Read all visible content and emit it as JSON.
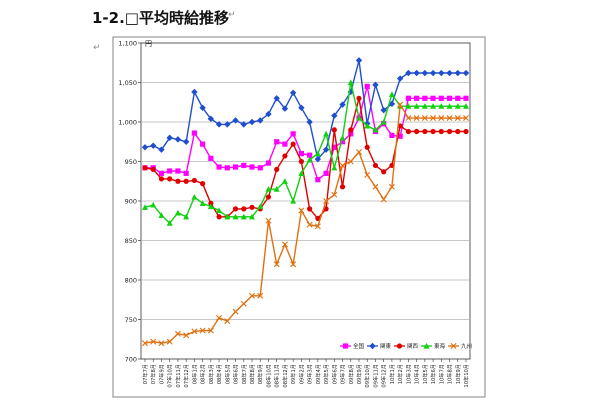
{
  "page": {
    "heading": "1-2.□平均時給推移",
    "heading_mark": "↵",
    "margin_mark": "↵"
  },
  "chart_data": {
    "type": "line",
    "ylabel": "円",
    "ylim": [
      700,
      1100
    ],
    "yticks": [
      700,
      750,
      800,
      850,
      900,
      950,
      1000,
      1050,
      1100
    ],
    "ytick_labels": [
      "700",
      "750",
      "800",
      "850",
      "900",
      "950",
      "1,000",
      "1,050",
      "1,100"
    ],
    "grid": true,
    "legend_position": "bottom-right",
    "categories": [
      "07年7月",
      "07年8月",
      "07年9月",
      "07年10月",
      "07年11月",
      "07年12月",
      "08年1月",
      "08年2月",
      "08年3月",
      "08年4月",
      "08年5月",
      "08年6月",
      "08年7月",
      "08年8月",
      "08年9月",
      "08年10月",
      "08年11月",
      "08年12月",
      "09年1月",
      "09年2月",
      "09年3月",
      "09年4月",
      "09年5月",
      "09年6月",
      "09年7月",
      "09年8月",
      "09年9月",
      "09年10月",
      "09年11月",
      "09年12月",
      "10年1月",
      "10年2月",
      "10年3月",
      "10年4月",
      "10年5月",
      "10年6月",
      "10年7月",
      "10年8月",
      "10年9月",
      "10年10月"
    ],
    "series": [
      {
        "name": "全国",
        "color": "#ff00ff",
        "marker": "square",
        "values": [
          942,
          942,
          935,
          938,
          938,
          935,
          986,
          972,
          954,
          943,
          942,
          943,
          945,
          943,
          942,
          948,
          975,
          972,
          985,
          960,
          958,
          927,
          935,
          968,
          975,
          985,
          1005,
          1045,
          988,
          998,
          983,
          982,
          1030,
          1030,
          1030,
          1030,
          1030,
          1030,
          1030,
          1030
        ]
      },
      {
        "name": "関東",
        "color": "#1f4fcf",
        "marker": "diamond",
        "values": [
          968,
          970,
          965,
          980,
          978,
          975,
          1038,
          1018,
          1004,
          997,
          997,
          1002,
          997,
          1000,
          1002,
          1010,
          1030,
          1017,
          1037,
          1018,
          1000,
          953,
          965,
          1008,
          1022,
          1038,
          1078,
          998,
          1047,
          1015,
          1023,
          1055,
          1062,
          1062,
          1062,
          1062,
          1062,
          1062,
          1062,
          1062
        ]
      },
      {
        "name": "関西",
        "color": "#e00000",
        "marker": "circle",
        "values": [
          942,
          940,
          928,
          928,
          925,
          925,
          926,
          922,
          897,
          880,
          880,
          890,
          890,
          892,
          890,
          905,
          940,
          957,
          972,
          950,
          890,
          878,
          890,
          990,
          918,
          990,
          1030,
          968,
          945,
          937,
          945,
          995,
          988,
          988,
          988,
          988,
          988,
          988,
          988,
          988
        ]
      },
      {
        "name": "東海",
        "color": "#10d010",
        "marker": "triangle",
        "values": [
          892,
          895,
          882,
          872,
          885,
          880,
          905,
          897,
          893,
          888,
          880,
          880,
          880,
          880,
          893,
          915,
          915,
          925,
          900,
          935,
          952,
          960,
          985,
          942,
          980,
          1050,
          1005,
          995,
          990,
          1000,
          1035,
          1020,
          1020,
          1020,
          1020,
          1020,
          1020,
          1020,
          1020,
          1020
        ]
      },
      {
        "name": "九州",
        "color": "#e07010",
        "marker": "x",
        "values": [
          720,
          722,
          720,
          722,
          732,
          730,
          735,
          736,
          736,
          752,
          748,
          760,
          770,
          780,
          780,
          875,
          820,
          845,
          820,
          888,
          870,
          868,
          900,
          908,
          945,
          950,
          962,
          933,
          918,
          902,
          918,
          1022,
          1005,
          1005,
          1005,
          1005,
          1005,
          1005,
          1005,
          1005
        ]
      }
    ]
  }
}
